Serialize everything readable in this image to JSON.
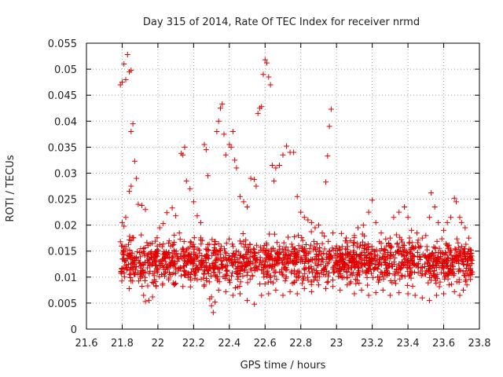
{
  "chart_data": {
    "type": "scatter",
    "title": "Day 315 of 2014, Rate Of TEC Index for receiver nrmd",
    "xlabel": "GPS time / hours",
    "ylabel": "ROTI / TECUs",
    "xlim": [
      21.6,
      23.8
    ],
    "ylim": [
      0,
      0.055
    ],
    "xticks": [
      "21.6",
      "21.8",
      "22",
      "22.2",
      "22.4",
      "22.6",
      "22.8",
      "23",
      "23.2",
      "23.4",
      "23.6",
      "23.8"
    ],
    "yticks": [
      "0",
      "0.005",
      "0.01",
      "0.015",
      "0.02",
      "0.025",
      "0.03",
      "0.035",
      "0.04",
      "0.045",
      "0.05",
      "0.055"
    ],
    "grid": true,
    "marker": "+",
    "color": "#e00000",
    "series": [
      {
        "name": "ROTI",
        "points": [
          [
            21.79,
            0.047
          ],
          [
            21.8,
            0.0475
          ],
          [
            21.81,
            0.051
          ],
          [
            21.82,
            0.048
          ],
          [
            21.83,
            0.0528
          ],
          [
            21.84,
            0.0495
          ],
          [
            21.85,
            0.0498
          ],
          [
            21.85,
            0.038
          ],
          [
            21.86,
            0.0395
          ],
          [
            21.87,
            0.0323
          ],
          [
            21.88,
            0.029
          ],
          [
            21.84,
            0.0265
          ],
          [
            21.85,
            0.0275
          ],
          [
            21.89,
            0.024
          ],
          [
            21.91,
            0.0238
          ],
          [
            21.93,
            0.023
          ],
          [
            21.82,
            0.0215
          ],
          [
            21.8,
            0.0205
          ],
          [
            21.81,
            0.0198
          ],
          [
            21.79,
            0.0168
          ],
          [
            21.8,
            0.016
          ],
          [
            21.83,
            0.0145
          ],
          [
            21.86,
            0.0133
          ],
          [
            21.88,
            0.012
          ],
          [
            21.9,
            0.0105
          ],
          [
            21.92,
            0.0065
          ],
          [
            21.93,
            0.0053
          ],
          [
            21.95,
            0.0055
          ],
          [
            21.97,
            0.0062
          ],
          [
            21.99,
            0.0082
          ],
          [
            22.01,
            0.0195
          ],
          [
            22.03,
            0.0203
          ],
          [
            22.05,
            0.0224
          ],
          [
            22.08,
            0.0233
          ],
          [
            22.1,
            0.0218
          ],
          [
            22.12,
            0.0185
          ],
          [
            22.13,
            0.0338
          ],
          [
            22.14,
            0.0335
          ],
          [
            22.15,
            0.035
          ],
          [
            22.16,
            0.0285
          ],
          [
            22.18,
            0.027
          ],
          [
            22.2,
            0.0245
          ],
          [
            22.22,
            0.0218
          ],
          [
            22.24,
            0.0205
          ],
          [
            22.26,
            0.0355
          ],
          [
            22.27,
            0.0345
          ],
          [
            22.28,
            0.0295
          ],
          [
            22.29,
            0.0058
          ],
          [
            22.3,
            0.0045
          ],
          [
            22.31,
            0.0032
          ],
          [
            22.32,
            0.0052
          ],
          [
            22.33,
            0.038
          ],
          [
            22.34,
            0.04
          ],
          [
            22.35,
            0.0425
          ],
          [
            22.36,
            0.0433
          ],
          [
            22.37,
            0.0375
          ],
          [
            22.38,
            0.0335
          ],
          [
            22.4,
            0.0355
          ],
          [
            22.41,
            0.035
          ],
          [
            22.42,
            0.038
          ],
          [
            22.43,
            0.0325
          ],
          [
            22.44,
            0.031
          ],
          [
            22.46,
            0.0255
          ],
          [
            22.48,
            0.0245
          ],
          [
            22.5,
            0.0235
          ],
          [
            22.52,
            0.029
          ],
          [
            22.54,
            0.0288
          ],
          [
            22.55,
            0.0275
          ],
          [
            22.56,
            0.0415
          ],
          [
            22.57,
            0.0425
          ],
          [
            22.58,
            0.0428
          ],
          [
            22.59,
            0.049
          ],
          [
            22.6,
            0.0518
          ],
          [
            22.61,
            0.0512
          ],
          [
            22.62,
            0.0485
          ],
          [
            22.63,
            0.047
          ],
          [
            22.64,
            0.0315
          ],
          [
            22.65,
            0.0285
          ],
          [
            22.66,
            0.031
          ],
          [
            22.68,
            0.0315
          ],
          [
            22.7,
            0.0335
          ],
          [
            22.72,
            0.0352
          ],
          [
            22.74,
            0.034
          ],
          [
            22.76,
            0.034
          ],
          [
            22.78,
            0.0255
          ],
          [
            22.8,
            0.0225
          ],
          [
            22.82,
            0.0215
          ],
          [
            22.84,
            0.021
          ],
          [
            22.86,
            0.0205
          ],
          [
            22.88,
            0.0195
          ],
          [
            22.9,
            0.02
          ],
          [
            22.92,
            0.0185
          ],
          [
            22.94,
            0.0283
          ],
          [
            22.95,
            0.0333
          ],
          [
            22.96,
            0.039
          ],
          [
            22.97,
            0.0423
          ],
          [
            22.98,
            0.0185
          ],
          [
            23.0,
            0.016
          ],
          [
            23.02,
            0.0152
          ],
          [
            23.05,
            0.0145
          ],
          [
            23.08,
            0.014
          ],
          [
            23.1,
            0.018
          ],
          [
            23.12,
            0.0195
          ],
          [
            23.15,
            0.02
          ],
          [
            23.18,
            0.0225
          ],
          [
            23.2,
            0.0248
          ],
          [
            23.22,
            0.0205
          ],
          [
            23.25,
            0.0185
          ],
          [
            23.28,
            0.016
          ],
          [
            23.3,
            0.0175
          ],
          [
            23.32,
            0.0215
          ],
          [
            23.35,
            0.0225
          ],
          [
            23.38,
            0.0235
          ],
          [
            23.4,
            0.0215
          ],
          [
            23.42,
            0.019
          ],
          [
            23.45,
            0.0185
          ],
          [
            23.48,
            0.0175
          ],
          [
            23.5,
            0.018
          ],
          [
            23.52,
            0.0215
          ],
          [
            23.53,
            0.0262
          ],
          [
            23.55,
            0.0235
          ],
          [
            23.57,
            0.0205
          ],
          [
            23.6,
            0.019
          ],
          [
            23.62,
            0.0205
          ],
          [
            23.64,
            0.0215
          ],
          [
            23.66,
            0.0252
          ],
          [
            23.67,
            0.0245
          ],
          [
            23.69,
            0.0215
          ],
          [
            23.7,
            0.0205
          ],
          [
            23.72,
            0.0195
          ],
          [
            23.74,
            0.0175
          ],
          [
            23.75,
            0.0145
          ],
          [
            23.76,
            0.011
          ],
          [
            23.73,
            0.0085
          ],
          [
            23.71,
            0.0075
          ],
          [
            23.69,
            0.0065
          ],
          [
            23.66,
            0.0072
          ],
          [
            23.63,
            0.0085
          ],
          [
            23.6,
            0.0068
          ],
          [
            23.56,
            0.0065
          ],
          [
            23.52,
            0.0055
          ],
          [
            23.48,
            0.006
          ],
          [
            23.44,
            0.0065
          ],
          [
            23.4,
            0.0068
          ],
          [
            23.35,
            0.007
          ],
          [
            23.3,
            0.0065
          ],
          [
            23.26,
            0.0075
          ],
          [
            23.22,
            0.007
          ],
          [
            23.18,
            0.0065
          ],
          [
            23.14,
            0.0075
          ],
          [
            23.1,
            0.0068
          ],
          [
            23.06,
            0.0085
          ],
          [
            23.02,
            0.0075
          ],
          [
            22.98,
            0.0082
          ],
          [
            22.94,
            0.0078
          ],
          [
            22.9,
            0.0085
          ],
          [
            22.86,
            0.0072
          ],
          [
            22.82,
            0.0078
          ],
          [
            22.78,
            0.0068
          ],
          [
            22.74,
            0.0072
          ],
          [
            22.7,
            0.0065
          ],
          [
            22.66,
            0.0075
          ],
          [
            22.62,
            0.0068
          ],
          [
            22.58,
            0.0065
          ],
          [
            22.54,
            0.0048
          ],
          [
            22.5,
            0.0055
          ],
          [
            22.46,
            0.0068
          ],
          [
            22.42,
            0.0065
          ],
          [
            22.38,
            0.0072
          ],
          [
            22.34,
            0.0075
          ],
          [
            22.3,
            0.0062
          ],
          [
            22.26,
            0.0085
          ],
          [
            22.22,
            0.0095
          ],
          [
            22.18,
            0.01
          ],
          [
            22.14,
            0.0082
          ],
          [
            22.1,
            0.0088
          ],
          [
            22.06,
            0.0095
          ],
          [
            22.02,
            0.0105
          ],
          [
            21.98,
            0.0095
          ]
        ]
      }
    ],
    "background_band": {
      "x_start": 21.79,
      "x_end": 23.76,
      "y_low": 0.007,
      "y_high": 0.019,
      "density": 1700
    }
  }
}
